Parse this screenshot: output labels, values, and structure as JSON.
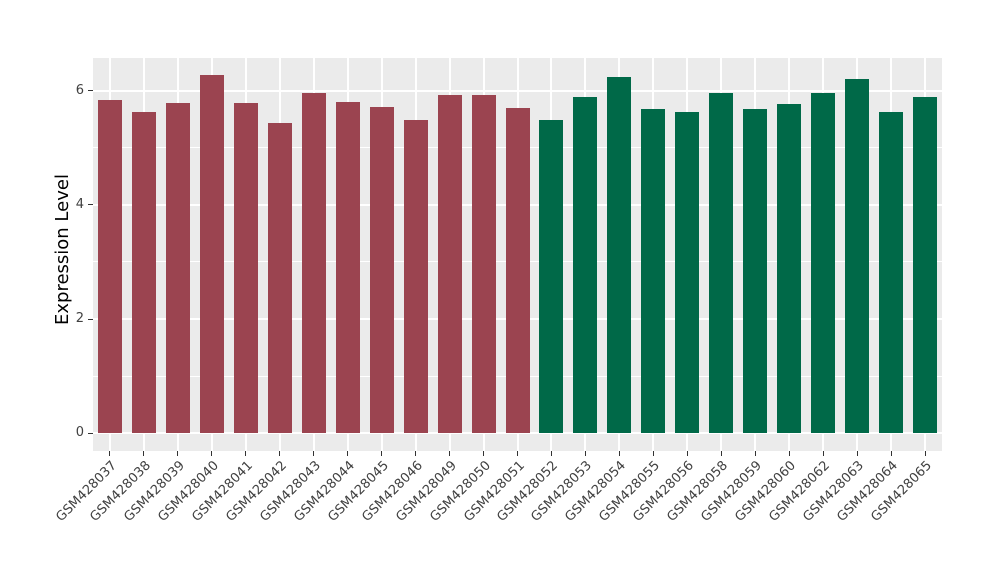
{
  "page": {
    "background": "#FFFFFF"
  },
  "chart_data": {
    "type": "bar",
    "title": "",
    "xlabel": "",
    "ylabel": "Expression Level",
    "ylim": [
      -0.31,
      6.57
    ],
    "y_major_ticks": [
      0,
      2,
      4,
      6
    ],
    "y_minor_ticks": [
      1,
      3,
      5
    ],
    "grid": "on",
    "legend": "none",
    "panel_background": "#EBEBEB",
    "gridline_color": "#FFFFFF",
    "tick_mark_color": "#333333",
    "tick_label_color": "#404040",
    "bar_groups": [
      {
        "name": "group-1-maroon",
        "color": "#9B4450"
      },
      {
        "name": "group-2-green",
        "color": "#006948"
      }
    ],
    "bars": [
      {
        "label": "GSM428037",
        "value": 5.83,
        "group": 0
      },
      {
        "label": "GSM428038",
        "value": 5.63,
        "group": 0
      },
      {
        "label": "GSM428039",
        "value": 5.78,
        "group": 0
      },
      {
        "label": "GSM428040",
        "value": 6.27,
        "group": 0
      },
      {
        "label": "GSM428041",
        "value": 5.79,
        "group": 0
      },
      {
        "label": "GSM428042",
        "value": 5.43,
        "group": 0
      },
      {
        "label": "GSM428043",
        "value": 5.96,
        "group": 0
      },
      {
        "label": "GSM428044",
        "value": 5.8,
        "group": 0
      },
      {
        "label": "GSM428045",
        "value": 5.71,
        "group": 0
      },
      {
        "label": "GSM428046",
        "value": 5.49,
        "group": 0
      },
      {
        "label": "GSM428049",
        "value": 5.93,
        "group": 0
      },
      {
        "label": "GSM428050",
        "value": 5.93,
        "group": 0
      },
      {
        "label": "GSM428051",
        "value": 5.69,
        "group": 0
      },
      {
        "label": "GSM428052",
        "value": 5.48,
        "group": 1
      },
      {
        "label": "GSM428053",
        "value": 5.89,
        "group": 1
      },
      {
        "label": "GSM428054",
        "value": 6.24,
        "group": 1
      },
      {
        "label": "GSM428055",
        "value": 5.67,
        "group": 1
      },
      {
        "label": "GSM428056",
        "value": 5.63,
        "group": 1
      },
      {
        "label": "GSM428058",
        "value": 5.95,
        "group": 1
      },
      {
        "label": "GSM428059",
        "value": 5.68,
        "group": 1
      },
      {
        "label": "GSM428060",
        "value": 5.76,
        "group": 1
      },
      {
        "label": "GSM428062",
        "value": 5.96,
        "group": 1
      },
      {
        "label": "GSM428063",
        "value": 6.21,
        "group": 1
      },
      {
        "label": "GSM428064",
        "value": 5.62,
        "group": 1
      },
      {
        "label": "GSM428065",
        "value": 5.89,
        "group": 1
      }
    ]
  }
}
